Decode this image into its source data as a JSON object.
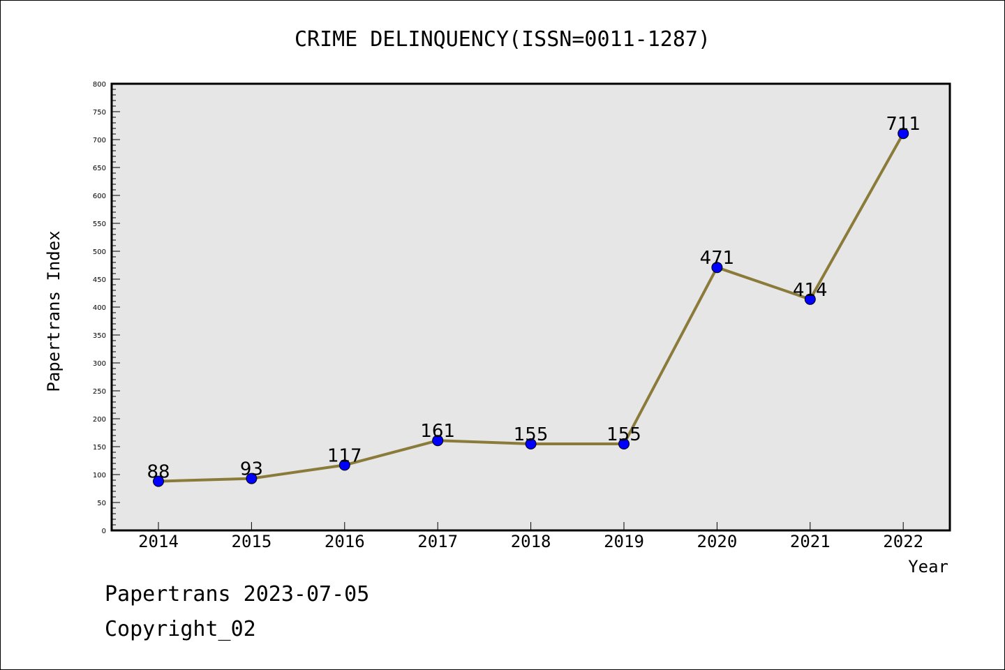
{
  "chart_data": {
    "type": "line",
    "title": "CRIME DELINQUENCY(ISSN=0011-1287)",
    "xlabel": "Year",
    "ylabel": "Papertrans Index",
    "categories": [
      "2014",
      "2015",
      "2016",
      "2017",
      "2018",
      "2019",
      "2020",
      "2021",
      "2022"
    ],
    "series": [
      {
        "values": [
          88,
          93,
          117,
          161,
          155,
          155,
          471,
          414,
          711
        ]
      }
    ],
    "data_labels": [
      "88",
      "93",
      "117",
      "161",
      "155",
      "155",
      "471",
      "414",
      "711"
    ],
    "ylim": [
      0,
      800
    ],
    "yticks": [
      "0",
      "50",
      "100",
      "150",
      "200",
      "250",
      "300",
      "350",
      "400",
      "450",
      "500",
      "550",
      "600",
      "650",
      "700",
      "750",
      "800"
    ],
    "grid": false,
    "legend": "none",
    "colors": {
      "line": "#8b7b3a",
      "marker": "#0000ff",
      "plot_bg": "#e6e6e6"
    }
  },
  "footer": {
    "line1": "Papertrans 2023-07-05",
    "line2": "Copyright_02"
  }
}
